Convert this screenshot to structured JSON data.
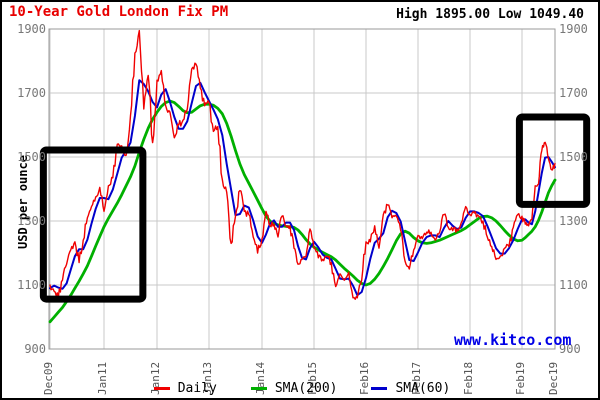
{
  "header": {
    "title": "10-Year Gold London Fix PM",
    "high_low": "High 1895.00 Low 1049.40"
  },
  "watermark": "www.kitco.com",
  "axes": {
    "ylabel": "USD per ounce",
    "y_tick_labels": [
      "1900",
      "1700",
      "1500",
      "1300",
      "1100",
      "900"
    ],
    "x_tick_labels": [
      "Dec09",
      "Jan11",
      "Jan12",
      "Jan13",
      "Jan14",
      "Feb15",
      "Feb16",
      "Feb17",
      "Feb18",
      "Feb19",
      "Dec19"
    ]
  },
  "legend": [
    {
      "label": "Daily",
      "color": "#f00000"
    },
    {
      "label": "SMA(200)",
      "color": "#00b000"
    },
    {
      "label": "SMA(60)",
      "color": "#0000cc"
    }
  ],
  "chart_data": {
    "type": "line",
    "title": "10-Year Gold London Fix PM",
    "ylabel": "USD per ounce",
    "ylim": [
      900,
      1900
    ],
    "y_ticks": [
      1900,
      1700,
      1500,
      1300,
      1100,
      900
    ],
    "high": 1895.0,
    "low": 1049.4,
    "x_unit": "months since Dec 2009 (monthly samples, Dec09..Dec19)",
    "x_tick_labels": [
      "Dec09",
      "Jan11",
      "Jan12",
      "Jan13",
      "Jan14",
      "Feb15",
      "Feb16",
      "Feb17",
      "Feb18",
      "Feb19",
      "Dec19"
    ],
    "x_tick_month_index": [
      0,
      13,
      25,
      37,
      49,
      62,
      74,
      86,
      98,
      110,
      120
    ],
    "grid": true,
    "legend_position": "bottom",
    "series": [
      {
        "name": "Daily",
        "color": "#f00000",
        "width": 1.4,
        "jagged": true,
        "values": [
          1100,
          1080,
          1060,
          1115,
          1165,
          1210,
          1235,
          1170,
          1240,
          1310,
          1345,
          1375,
          1405,
          1330,
          1410,
          1435,
          1540,
          1535,
          1505,
          1630,
          1825,
          1895,
          1650,
          1755,
          1545,
          1740,
          1770,
          1660,
          1640,
          1560,
          1600,
          1615,
          1650,
          1775,
          1790,
          1715,
          1660,
          1670,
          1580,
          1595,
          1430,
          1390,
          1230,
          1315,
          1395,
          1330,
          1320,
          1250,
          1200,
          1245,
          1330,
          1285,
          1290,
          1250,
          1315,
          1285,
          1285,
          1215,
          1165,
          1180,
          1190,
          1275,
          1215,
          1185,
          1180,
          1190,
          1170,
          1095,
          1135,
          1115,
          1140,
          1060,
          1060,
          1115,
          1235,
          1235,
          1285,
          1215,
          1320,
          1350,
          1310,
          1315,
          1270,
          1175,
          1150,
          1210,
          1255,
          1245,
          1265,
          1265,
          1240,
          1265,
          1320,
          1280,
          1270,
          1275,
          1295,
          1345,
          1320,
          1325,
          1315,
          1300,
          1250,
          1220,
          1180,
          1190,
          1215,
          1220,
          1280,
          1320,
          1315,
          1290,
          1285,
          1305,
          1410,
          1415,
          1520,
          1546,
          1495,
          1460,
          1480
        ]
      },
      {
        "name": "SMA(200)",
        "color": "#00b000",
        "width": 2.8,
        "jagged": false,
        "values": [
          985,
          1000,
          1015,
          1030,
          1048,
          1068,
          1090,
          1112,
          1135,
          1160,
          1190,
          1222,
          1252,
          1282,
          1308,
          1332,
          1356,
          1382,
          1410,
          1438,
          1472,
          1515,
          1555,
          1590,
          1618,
          1640,
          1658,
          1670,
          1675,
          1670,
          1658,
          1645,
          1638,
          1640,
          1650,
          1660,
          1665,
          1665,
          1662,
          1652,
          1635,
          1605,
          1565,
          1520,
          1478,
          1445,
          1418,
          1392,
          1365,
          1338,
          1315,
          1300,
          1292,
          1288,
          1285,
          1283,
          1282,
          1280,
          1272,
          1258,
          1242,
          1228,
          1218,
          1210,
          1202,
          1195,
          1188,
          1178,
          1165,
          1152,
          1140,
          1128,
          1115,
          1105,
          1100,
          1105,
          1118,
          1136,
          1158,
          1183,
          1210,
          1238,
          1260,
          1268,
          1262,
          1248,
          1238,
          1232,
          1230,
          1232,
          1236,
          1240,
          1246,
          1252,
          1258,
          1264,
          1270,
          1278,
          1288,
          1298,
          1308,
          1314,
          1315,
          1310,
          1300,
          1286,
          1270,
          1256,
          1244,
          1238,
          1240,
          1248,
          1258,
          1268,
          1282,
          1302,
          1328,
          1358,
          1388,
          1410,
          1428
        ]
      },
      {
        "name": "SMA(60)",
        "color": "#0000cc",
        "width": 2.0,
        "jagged": false,
        "values": [
          1090,
          1098,
          1092,
          1088,
          1105,
          1148,
          1190,
          1212,
          1212,
          1242,
          1292,
          1338,
          1372,
          1372,
          1368,
          1398,
          1448,
          1498,
          1520,
          1545,
          1628,
          1740,
          1728,
          1705,
          1672,
          1655,
          1695,
          1712,
          1672,
          1625,
          1588,
          1588,
          1612,
          1668,
          1722,
          1732,
          1702,
          1675,
          1648,
          1618,
          1568,
          1478,
          1398,
          1318,
          1322,
          1348,
          1342,
          1302,
          1252,
          1232,
          1258,
          1292,
          1302,
          1282,
          1282,
          1295,
          1295,
          1272,
          1222,
          1185,
          1180,
          1215,
          1235,
          1218,
          1195,
          1185,
          1180,
          1150,
          1120,
          1118,
          1120,
          1098,
          1068,
          1078,
          1122,
          1182,
          1232,
          1245,
          1262,
          1312,
          1332,
          1325,
          1298,
          1238,
          1178,
          1175,
          1202,
          1232,
          1250,
          1255,
          1255,
          1250,
          1278,
          1300,
          1285,
          1275,
          1280,
          1310,
          1330,
          1330,
          1325,
          1315,
          1285,
          1250,
          1215,
          1198,
          1198,
          1215,
          1240,
          1275,
          1305,
          1305,
          1295,
          1290,
          1330,
          1390,
          1450,
          1498,
          1500,
          1485,
          1468
        ]
      }
    ],
    "annotations": [
      {
        "type": "rect",
        "label": "highlight-early-rally",
        "months": [
          -1.6,
          21.8
        ],
        "price": [
          1056,
          1522
        ]
      },
      {
        "type": "rect",
        "label": "highlight-2019-rally",
        "months": [
          109.4,
          129.6
        ],
        "price": [
          1352,
          1625
        ]
      }
    ]
  }
}
